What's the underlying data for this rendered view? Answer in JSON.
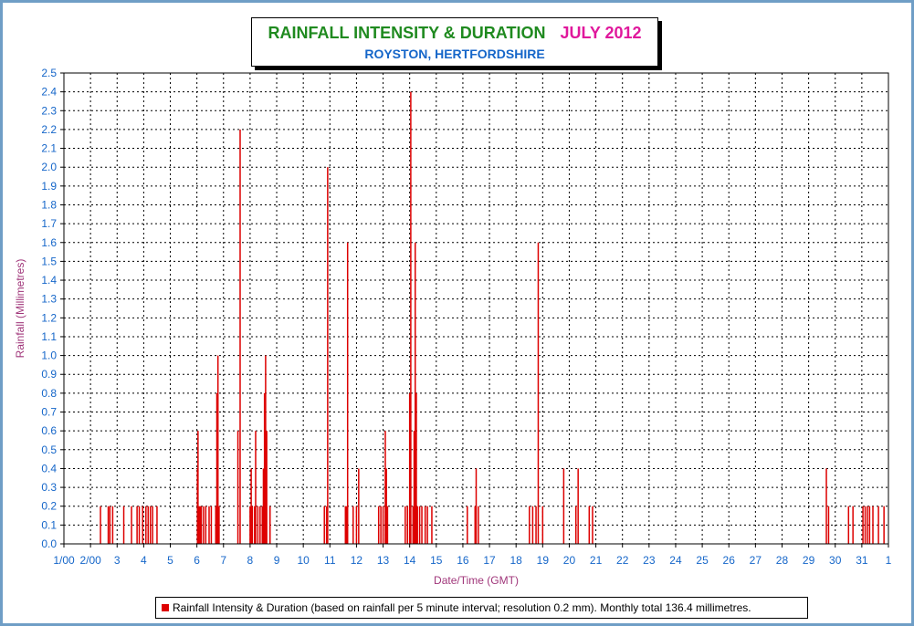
{
  "title": {
    "main": "RAINFALL INTENSITY & DURATION",
    "month": "JULY 2012",
    "location": "ROYSTON, HERTFORDSHIRE"
  },
  "legend_text": "Rainfall Intensity & Duration (based on rainfall per 5 minute interval; resolution 0.2 mm). Monthly total 136.4 millimetres.",
  "colors": {
    "bars": "#dd0000",
    "ticks": "#1566c9",
    "axis_label": "#a0367a"
  },
  "chart_data": {
    "type": "bar",
    "title": "RAINFALL INTENSITY & DURATION JULY 2012",
    "subtitle": "ROYSTON, HERTFORDSHIRE",
    "xlabel": "Date/Time (GMT)",
    "ylabel": "Rainfall (Millimetres)",
    "ylim": [
      0,
      2.5
    ],
    "xlim": [
      "2012-07-01",
      "2012-08-01"
    ],
    "grid": true,
    "legend": "bottom",
    "x_tick_labels": [
      "1/00",
      "2/00",
      "3",
      "4",
      "5",
      "6",
      "7",
      "8",
      "9",
      "10",
      "11",
      "12",
      "13",
      "14",
      "15",
      "16",
      "17",
      "18",
      "19",
      "20",
      "21",
      "22",
      "23",
      "24",
      "25",
      "26",
      "27",
      "28",
      "29",
      "30",
      "31",
      "1"
    ],
    "y_tick_labels": [
      "0.0",
      "0.1",
      "0.2",
      "0.3",
      "0.4",
      "0.5",
      "0.6",
      "0.7",
      "0.8",
      "0.9",
      "1.0",
      "1.1",
      "1.2",
      "1.3",
      "1.4",
      "1.5",
      "1.6",
      "1.7",
      "1.8",
      "1.9",
      "2.0",
      "2.1",
      "2.2",
      "2.3",
      "2.4",
      "2.5"
    ],
    "series": [
      {
        "name": "Rainfall Intensity & Duration",
        "x": [
          "2012-07-02 09:00",
          "2012-07-02 16:00",
          "2012-07-02 17:30",
          "2012-07-02 20:00",
          "2012-07-03 06:00",
          "2012-07-03 13:00",
          "2012-07-03 18:00",
          "2012-07-03 20:00",
          "2012-07-03 23:00",
          "2012-07-04 02:00",
          "2012-07-04 04:00",
          "2012-07-04 06:00",
          "2012-07-04 08:00",
          "2012-07-04 12:00",
          "2012-07-06 00:30",
          "2012-07-06 01:00",
          "2012-07-06 02:00",
          "2012-07-06 03:00",
          "2012-07-06 04:00",
          "2012-07-06 06:00",
          "2012-07-06 08:00",
          "2012-07-06 11:00",
          "2012-07-06 13:00",
          "2012-07-06 17:00",
          "2012-07-06 18:00",
          "2012-07-06 19:00",
          "2012-07-06 20:00",
          "2012-07-07 13:00",
          "2012-07-07 15:00",
          "2012-07-08 00:00",
          "2012-07-08 01:00",
          "2012-07-08 02:00",
          "2012-07-08 04:00",
          "2012-07-08 05:00",
          "2012-07-08 07:00",
          "2012-07-08 09:00",
          "2012-07-08 11:00",
          "2012-07-08 12:00",
          "2012-07-08 13:00",
          "2012-07-08 14:00",
          "2012-07-08 15:00",
          "2012-07-08 18:00",
          "2012-07-10 19:00",
          "2012-07-10 21:00",
          "2012-07-10 22:00",
          "2012-07-11 14:00",
          "2012-07-11 15:00",
          "2012-07-11 16:00",
          "2012-07-11 21:00",
          "2012-07-12 00:00",
          "2012-07-12 02:00",
          "2012-07-12 20:00",
          "2012-07-12 22:00",
          "2012-07-13 00:00",
          "2012-07-13 02:00",
          "2012-07-13 03:00",
          "2012-07-13 04:00",
          "2012-07-13 20:00",
          "2012-07-13 22:00",
          "2012-07-14 00:00",
          "2012-07-14 01:00",
          "2012-07-14 03:00",
          "2012-07-14 04:00",
          "2012-07-14 05:00",
          "2012-07-14 06:00",
          "2012-07-14 07:00",
          "2012-07-14 09:00",
          "2012-07-14 11:00",
          "2012-07-14 14:00",
          "2012-07-14 16:00",
          "2012-07-14 20:00",
          "2012-07-16 04:00",
          "2012-07-16 11:00",
          "2012-07-16 12:00",
          "2012-07-16 14:00",
          "2012-07-18 12:00",
          "2012-07-18 15:00",
          "2012-07-18 18:00",
          "2012-07-18 20:00",
          "2012-07-19 00:00",
          "2012-07-19 19:00",
          "2012-07-20 06:00",
          "2012-07-20 08:00",
          "2012-07-20 18:00",
          "2012-07-20 21:00",
          "2012-07-29 16:00",
          "2012-07-29 18:00",
          "2012-07-30 12:00",
          "2012-07-30 16:00",
          "2012-07-31 01:00",
          "2012-07-31 03:00",
          "2012-07-31 05:00",
          "2012-07-31 07:00",
          "2012-07-31 10:00",
          "2012-07-31 15:00",
          "2012-07-31 20:00"
        ],
        "values": [
          0.2,
          0.2,
          0.2,
          0.2,
          0.2,
          0.2,
          0.2,
          0.2,
          0.2,
          0.2,
          0.2,
          0.2,
          0.2,
          0.2,
          0.4,
          0.6,
          0.2,
          0.2,
          0.2,
          0.2,
          0.2,
          0.2,
          0.2,
          0.2,
          0.8,
          1.0,
          0.2,
          0.6,
          2.2,
          0.2,
          0.4,
          0.2,
          0.2,
          0.6,
          0.2,
          0.2,
          0.2,
          0.4,
          0.8,
          1.0,
          0.6,
          0.2,
          0.2,
          0.2,
          2.0,
          0.2,
          0.2,
          1.6,
          0.2,
          0.2,
          0.4,
          0.2,
          0.2,
          0.2,
          0.6,
          0.4,
          0.2,
          0.2,
          0.2,
          0.8,
          2.4,
          0.2,
          0.6,
          1.6,
          0.8,
          0.2,
          0.2,
          0.2,
          0.2,
          0.2,
          0.2,
          0.2,
          0.2,
          0.4,
          0.2,
          0.2,
          0.2,
          0.2,
          1.6,
          0.2,
          0.4,
          0.2,
          0.4,
          0.2,
          0.2,
          0.4,
          0.2,
          0.2,
          0.2,
          0.2,
          0.2,
          0.2,
          0.2,
          0.2,
          0.2,
          0.2
        ]
      }
    ]
  }
}
